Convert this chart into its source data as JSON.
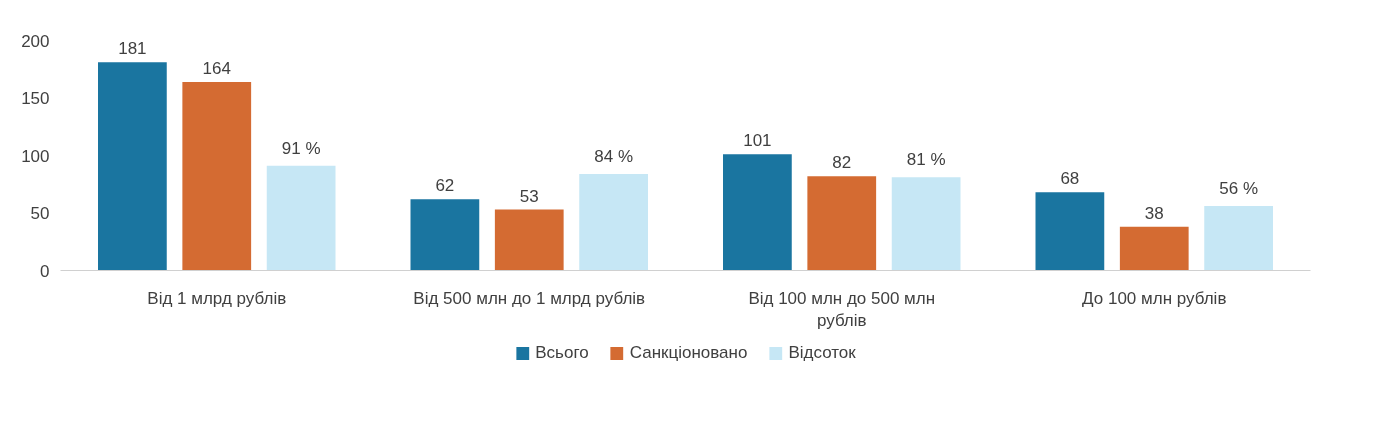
{
  "chart_data": {
    "type": "bar",
    "categories": [
      "Від 1 млрд рублів",
      "Від 500 млн до 1 млрд рублів",
      "Від 100 млн до 500 млн\nрублів",
      "До 100 млн рублів"
    ],
    "series": [
      {
        "name": "Всього",
        "color": "#1a75a0",
        "values": [
          181,
          62,
          101,
          68
        ]
      },
      {
        "name": "Санкціоновано",
        "color": "#d46b32",
        "values": [
          164,
          53,
          82,
          38
        ]
      },
      {
        "name": "Відсоток",
        "color": "#c6e7f5",
        "values": [
          91,
          84,
          81,
          56
        ],
        "value_labels": [
          "91 %",
          "84 %",
          "81 %",
          "56 %"
        ]
      }
    ],
    "ylim": [
      0,
      200
    ],
    "yticks": [
      0,
      50,
      100,
      150,
      200
    ],
    "grid": false,
    "legend": "bottom",
    "data_labels": true
  }
}
